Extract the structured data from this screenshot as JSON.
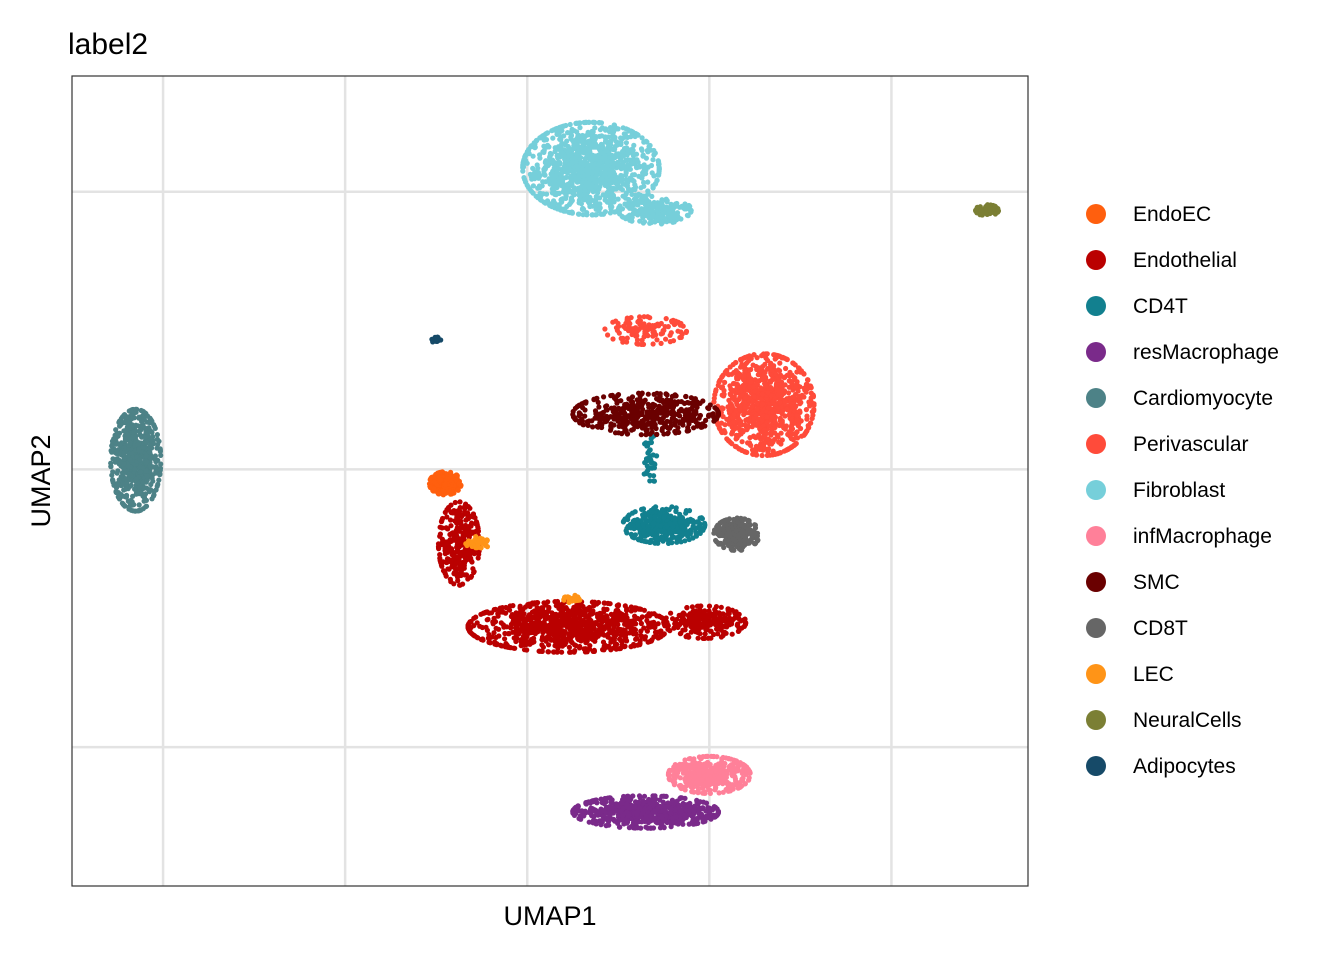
{
  "chart_data": {
    "type": "scatter",
    "title": "label2",
    "xlabel": "UMAP1",
    "ylabel": "UMAP2",
    "grid": true,
    "legend_position": "right",
    "axis_ticks_shown": false,
    "series": [
      {
        "name": "EndoEC",
        "color": "#FF5F0E",
        "clusters": [
          {
            "x": -1.8,
            "y": -0.3,
            "rx": 0.35,
            "ry": 0.25,
            "n": 200
          }
        ]
      },
      {
        "name": "Endothelial",
        "color": "#BA0000",
        "clusters": [
          {
            "x": 0.9,
            "y": -3.4,
            "rx": 2.2,
            "ry": 0.55,
            "n": 900
          },
          {
            "x": 3.9,
            "y": -3.3,
            "rx": 0.9,
            "ry": 0.35,
            "n": 250
          },
          {
            "x": -1.5,
            "y": -1.6,
            "rx": 0.45,
            "ry": 0.9,
            "n": 300
          }
        ]
      },
      {
        "name": "CD4T",
        "color": "#12808F",
        "clusters": [
          {
            "x": 3.0,
            "y": -1.2,
            "rx": 0.9,
            "ry": 0.4,
            "n": 350
          },
          {
            "x": 2.7,
            "y": 0.2,
            "rx": 0.15,
            "ry": 0.6,
            "n": 40
          }
        ]
      },
      {
        "name": "resMacrophage",
        "color": "#7A2A8A",
        "clusters": [
          {
            "x": 2.6,
            "y": -7.4,
            "rx": 1.6,
            "ry": 0.35,
            "n": 600
          }
        ]
      },
      {
        "name": "Cardiomyocyte",
        "color": "#4D8287",
        "clusters": [
          {
            "x": -8.6,
            "y": 0.2,
            "rx": 0.55,
            "ry": 1.1,
            "n": 600
          }
        ]
      },
      {
        "name": "Perivascular",
        "color": "#FF4B3A",
        "clusters": [
          {
            "x": 5.2,
            "y": 1.4,
            "rx": 1.1,
            "ry": 1.1,
            "n": 900
          },
          {
            "x": 2.6,
            "y": 3.0,
            "rx": 0.9,
            "ry": 0.3,
            "n": 120
          }
        ]
      },
      {
        "name": "Fibroblast",
        "color": "#76CFDA",
        "clusters": [
          {
            "x": 1.4,
            "y": 6.5,
            "rx": 1.5,
            "ry": 1.0,
            "n": 1100
          },
          {
            "x": 2.8,
            "y": 5.6,
            "rx": 0.8,
            "ry": 0.3,
            "n": 200
          }
        ]
      },
      {
        "name": "infMacrophage",
        "color": "#FF8099",
        "clusters": [
          {
            "x": 4.0,
            "y": -6.6,
            "rx": 0.9,
            "ry": 0.4,
            "n": 400
          }
        ]
      },
      {
        "name": "SMC",
        "color": "#6A0000",
        "clusters": [
          {
            "x": 2.6,
            "y": 1.2,
            "rx": 1.6,
            "ry": 0.45,
            "n": 450
          }
        ]
      },
      {
        "name": "CD8T",
        "color": "#666666",
        "clusters": [
          {
            "x": 4.6,
            "y": -1.4,
            "rx": 0.5,
            "ry": 0.35,
            "n": 250
          }
        ]
      },
      {
        "name": "LEC",
        "color": "#FF9417",
        "clusters": [
          {
            "x": 1.0,
            "y": -2.8,
            "rx": 0.2,
            "ry": 0.08,
            "n": 30
          },
          {
            "x": -1.1,
            "y": -1.6,
            "rx": 0.25,
            "ry": 0.15,
            "n": 40
          }
        ]
      },
      {
        "name": "NeuralCells",
        "color": "#7B7F34",
        "clusters": [
          {
            "x": 10.1,
            "y": 5.6,
            "rx": 0.25,
            "ry": 0.12,
            "n": 90
          }
        ]
      },
      {
        "name": "Adipocytes",
        "color": "#164A68",
        "clusters": [
          {
            "x": -2.0,
            "y": 2.8,
            "rx": 0.1,
            "ry": 0.07,
            "n": 20
          }
        ]
      }
    ]
  }
}
